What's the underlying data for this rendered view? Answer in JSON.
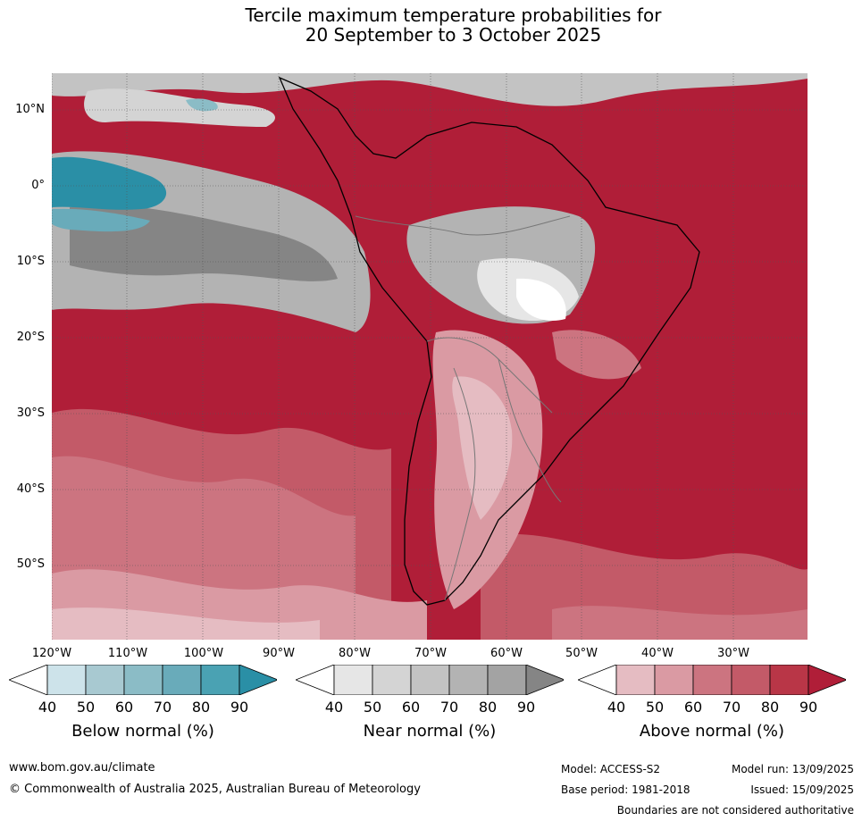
{
  "title": {
    "line1": "Tercile maximum temperature probabilities for",
    "line2": "20 September to 3 October 2025"
  },
  "axes": {
    "lat_labels": [
      "10°N",
      "0°",
      "10°S",
      "20°S",
      "30°S",
      "40°S",
      "50°S"
    ],
    "lon_labels": [
      "120°W",
      "110°W",
      "100°W",
      "90°W",
      "80°W",
      "70°W",
      "60°W",
      "50°W",
      "40°W",
      "30°W"
    ]
  },
  "colorbars": [
    {
      "label": "Below normal (%)",
      "ticks": [
        "40",
        "50",
        "60",
        "70",
        "80",
        "90"
      ],
      "colors": [
        "#ffffff",
        "#cde3ea",
        "#a8c9d1",
        "#8bbcc6",
        "#69abba",
        "#4aa2b3",
        "#2a8fa6"
      ]
    },
    {
      "label": "Near normal (%)",
      "ticks": [
        "40",
        "50",
        "60",
        "70",
        "80",
        "90"
      ],
      "colors": [
        "#ffffff",
        "#e6e6e6",
        "#d4d4d4",
        "#c3c3c3",
        "#b3b3b3",
        "#a3a3a3",
        "#858585"
      ]
    },
    {
      "label": "Above normal (%)",
      "ticks": [
        "40",
        "50",
        "60",
        "70",
        "80",
        "90"
      ],
      "colors": [
        "#ffffff",
        "#e5bcc2",
        "#da9aa3",
        "#cc7480",
        "#c35a68",
        "#b93647",
        "#b01e38"
      ]
    }
  ],
  "footer": {
    "website": "www.bom.gov.au/climate",
    "copyright": "© Commonwealth of Australia 2025, Australian Bureau of Meteorology",
    "model": "Model: ACCESS-S2",
    "base_period": "Base period: 1981-2018",
    "model_run": "Model run: 13/09/2025",
    "issued": "Issued: 15/09/2025",
    "disclaimer": "Boundaries are not considered authoritative"
  }
}
